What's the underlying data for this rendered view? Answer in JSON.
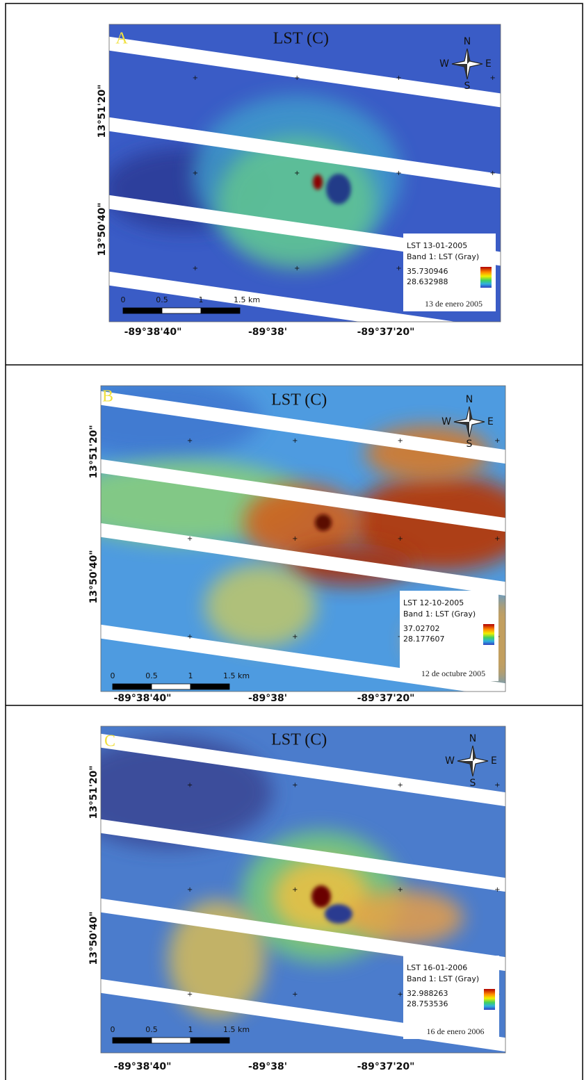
{
  "panels": [
    {
      "letter": "A",
      "title": "LST (C)",
      "compass": {
        "n": "N",
        "w": "W",
        "e": "E",
        "s": "S"
      },
      "y_labels": [
        "13°51'20\"",
        "13°50'40\""
      ],
      "x_labels": [
        "-89°38'40\"",
        "-89°38'",
        "-89°37'20\""
      ],
      "legend": {
        "title": "LST 13-01-2005",
        "band": "Band 1: LST (Gray)",
        "max": "35.730946",
        "min": "28.632988"
      },
      "date": "13 de enero 2005",
      "scale_labels": [
        "0",
        "0.5",
        "1",
        "1.5 km"
      ]
    },
    {
      "letter": "B",
      "title": "LST (C)",
      "compass": {
        "n": "N",
        "w": "W",
        "e": "E",
        "s": "S"
      },
      "y_labels": [
        "13°51'20\"",
        "13°50'40\""
      ],
      "x_labels": [
        "-89°38'40\"",
        "-89°38'",
        "-89°37'20\""
      ],
      "legend": {
        "title": "LST 12-10-2005",
        "band": "Band 1: LST (Gray)",
        "max": "37.02702",
        "min": "28.177607"
      },
      "date": "12 de octubre 2005",
      "scale_labels": [
        "0",
        "0.5",
        "1",
        "1.5 km"
      ]
    },
    {
      "letter": "C",
      "title": "LST (C)",
      "compass": {
        "n": "N",
        "w": "W",
        "e": "E",
        "s": "S"
      },
      "y_labels": [
        "13°51'20\"",
        "13°50'40\""
      ],
      "x_labels": [
        "-89°38'40\"",
        "-89°38'",
        "-89°37'20\""
      ],
      "legend": {
        "title": "LST 16-01-2006",
        "band": "Band 1: LST (Gray)",
        "max": "32.988263",
        "min": "28.753536"
      },
      "date": "16 de enero 2006",
      "scale_labels": [
        "0",
        "0.5",
        "1",
        "1.5 km"
      ]
    }
  ]
}
